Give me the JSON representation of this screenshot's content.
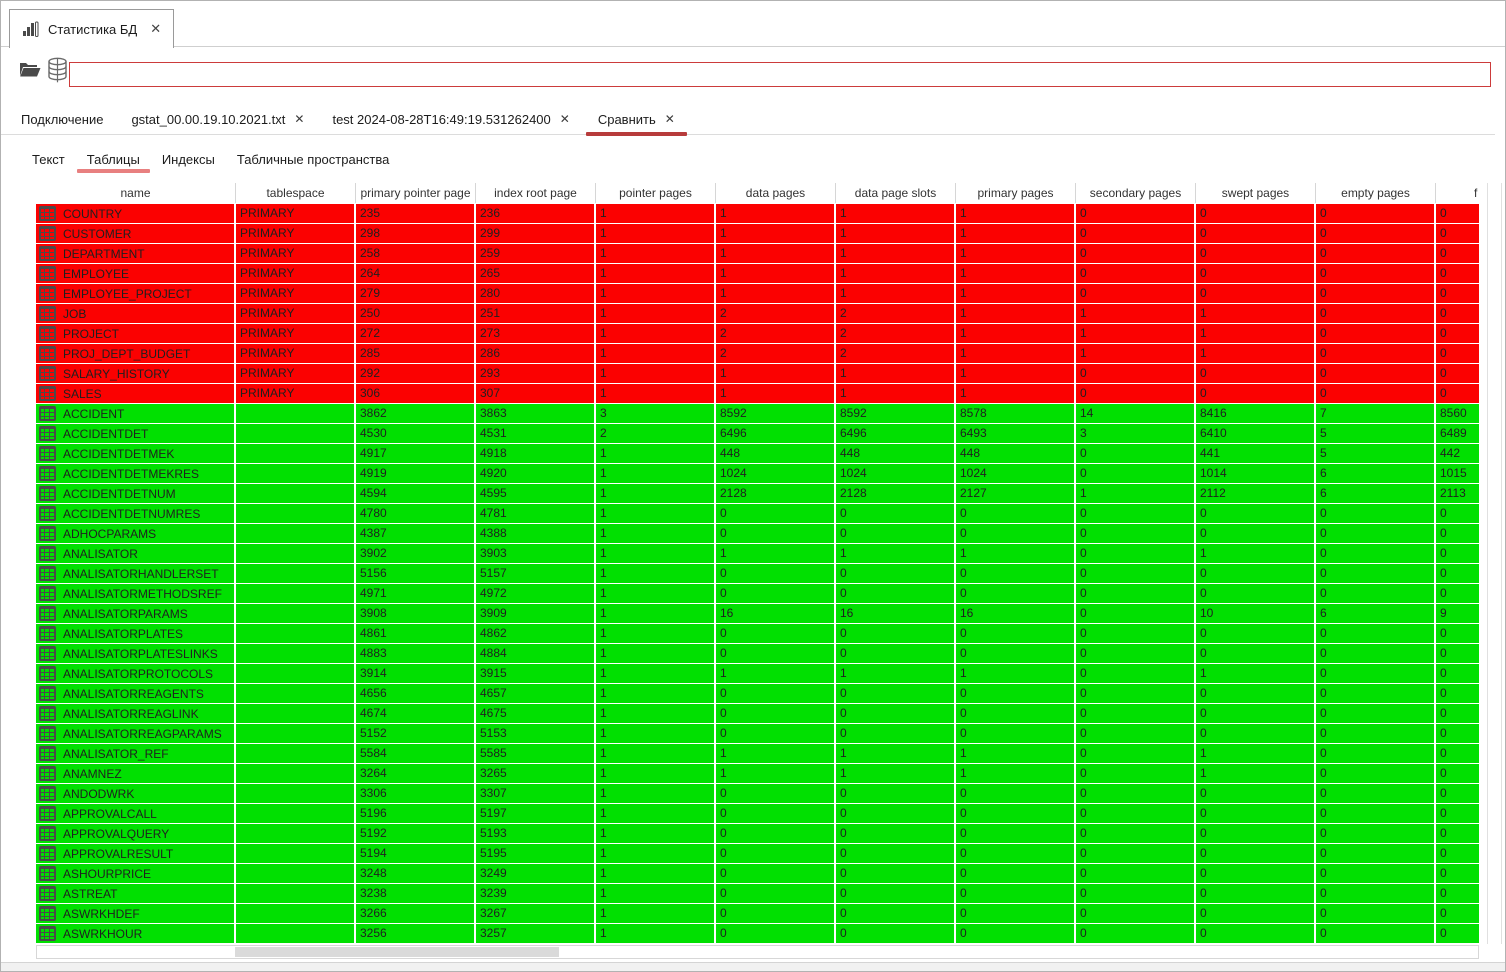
{
  "window_tab": {
    "title": "Статистика БД",
    "close_glyph": "✕"
  },
  "toolbar": {
    "path_value": ""
  },
  "doc_tabs": {
    "close_glyph": "✕",
    "items": [
      {
        "label": "Подключение",
        "closable": false,
        "active": false
      },
      {
        "label": "gstat_00.00.19.10.2021.txt",
        "closable": true,
        "active": false
      },
      {
        "label": "test 2024-08-28T16:49:19.531262400",
        "closable": true,
        "active": false
      },
      {
        "label": "Сравнить",
        "closable": true,
        "active": true
      }
    ]
  },
  "view_tabs": {
    "items": [
      {
        "label": "Текст",
        "active": false
      },
      {
        "label": "Таблицы",
        "active": true
      },
      {
        "label": "Индексы",
        "active": false
      },
      {
        "label": "Табличные пространства",
        "active": false
      }
    ]
  },
  "colors": {
    "red_row": "#fb0101",
    "green_row": "#01e001",
    "active_tab_underline": "#b73b3b",
    "active_subtab_underline": "#e88080",
    "path_input_border": "#cc3b3b"
  },
  "table": {
    "columns": [
      "name",
      "tablespace",
      "primary pointer page",
      "index root page",
      "pointer pages",
      "data pages",
      "data page slots",
      "primary pages",
      "secondary pages",
      "swept pages",
      "empty pages",
      "f"
    ],
    "rows": [
      {
        "name": "COUNTRY",
        "tablespace": "PRIMARY",
        "status": "red",
        "values": [
          235,
          236,
          1,
          1,
          1,
          1,
          0,
          0,
          0,
          0
        ]
      },
      {
        "name": "CUSTOMER",
        "tablespace": "PRIMARY",
        "status": "red",
        "values": [
          298,
          299,
          1,
          1,
          1,
          1,
          0,
          0,
          0,
          0
        ]
      },
      {
        "name": "DEPARTMENT",
        "tablespace": "PRIMARY",
        "status": "red",
        "values": [
          258,
          259,
          1,
          1,
          1,
          1,
          0,
          0,
          0,
          0
        ]
      },
      {
        "name": "EMPLOYEE",
        "tablespace": "PRIMARY",
        "status": "red",
        "values": [
          264,
          265,
          1,
          1,
          1,
          1,
          0,
          0,
          0,
          0
        ]
      },
      {
        "name": "EMPLOYEE_PROJECT",
        "tablespace": "PRIMARY",
        "status": "red",
        "values": [
          279,
          280,
          1,
          1,
          1,
          1,
          0,
          0,
          0,
          0
        ]
      },
      {
        "name": "JOB",
        "tablespace": "PRIMARY",
        "status": "red",
        "values": [
          250,
          251,
          1,
          2,
          2,
          1,
          1,
          1,
          0,
          0
        ]
      },
      {
        "name": "PROJECT",
        "tablespace": "PRIMARY",
        "status": "red",
        "values": [
          272,
          273,
          1,
          2,
          2,
          1,
          1,
          1,
          0,
          0
        ]
      },
      {
        "name": "PROJ_DEPT_BUDGET",
        "tablespace": "PRIMARY",
        "status": "red",
        "values": [
          285,
          286,
          1,
          2,
          2,
          1,
          1,
          1,
          0,
          0
        ]
      },
      {
        "name": "SALARY_HISTORY",
        "tablespace": "PRIMARY",
        "status": "red",
        "values": [
          292,
          293,
          1,
          1,
          1,
          1,
          0,
          0,
          0,
          0
        ]
      },
      {
        "name": "SALES",
        "tablespace": "PRIMARY",
        "status": "red",
        "values": [
          306,
          307,
          1,
          1,
          1,
          1,
          0,
          0,
          0,
          0
        ]
      },
      {
        "name": "ACCIDENT",
        "tablespace": "",
        "status": "green",
        "values": [
          3862,
          3863,
          3,
          8592,
          8592,
          8578,
          14,
          8416,
          7,
          8560
        ]
      },
      {
        "name": "ACCIDENTDET",
        "tablespace": "",
        "status": "green",
        "values": [
          4530,
          4531,
          2,
          6496,
          6496,
          6493,
          3,
          6410,
          5,
          6489
        ]
      },
      {
        "name": "ACCIDENTDETMEK",
        "tablespace": "",
        "status": "green",
        "values": [
          4917,
          4918,
          1,
          448,
          448,
          448,
          0,
          441,
          5,
          442
        ]
      },
      {
        "name": "ACCIDENTDETMEKRES",
        "tablespace": "",
        "status": "green",
        "values": [
          4919,
          4920,
          1,
          1024,
          1024,
          1024,
          0,
          1014,
          6,
          1015
        ]
      },
      {
        "name": "ACCIDENTDETNUM",
        "tablespace": "",
        "status": "green",
        "values": [
          4594,
          4595,
          1,
          2128,
          2128,
          2127,
          1,
          2112,
          6,
          2113
        ]
      },
      {
        "name": "ACCIDENTDETNUMRES",
        "tablespace": "",
        "status": "green",
        "values": [
          4780,
          4781,
          1,
          0,
          0,
          0,
          0,
          0,
          0,
          0
        ]
      },
      {
        "name": "ADHOCPARAMS",
        "tablespace": "",
        "status": "green",
        "values": [
          4387,
          4388,
          1,
          0,
          0,
          0,
          0,
          0,
          0,
          0
        ]
      },
      {
        "name": "ANALISATOR",
        "tablespace": "",
        "status": "green",
        "values": [
          3902,
          3903,
          1,
          1,
          1,
          1,
          0,
          1,
          0,
          0
        ]
      },
      {
        "name": "ANALISATORHANDLERSET",
        "tablespace": "",
        "status": "green",
        "values": [
          5156,
          5157,
          1,
          0,
          0,
          0,
          0,
          0,
          0,
          0
        ]
      },
      {
        "name": "ANALISATORMETHODSREF",
        "tablespace": "",
        "status": "green",
        "values": [
          4971,
          4972,
          1,
          0,
          0,
          0,
          0,
          0,
          0,
          0
        ]
      },
      {
        "name": "ANALISATORPARAMS",
        "tablespace": "",
        "status": "green",
        "values": [
          3908,
          3909,
          1,
          16,
          16,
          16,
          0,
          10,
          6,
          9
        ]
      },
      {
        "name": "ANALISATORPLATES",
        "tablespace": "",
        "status": "green",
        "values": [
          4861,
          4862,
          1,
          0,
          0,
          0,
          0,
          0,
          0,
          0
        ]
      },
      {
        "name": "ANALISATORPLATESLINKS",
        "tablespace": "",
        "status": "green",
        "values": [
          4883,
          4884,
          1,
          0,
          0,
          0,
          0,
          0,
          0,
          0
        ]
      },
      {
        "name": "ANALISATORPROTOCOLS",
        "tablespace": "",
        "status": "green",
        "values": [
          3914,
          3915,
          1,
          1,
          1,
          1,
          0,
          1,
          0,
          0
        ]
      },
      {
        "name": "ANALISATORREAGENTS",
        "tablespace": "",
        "status": "green",
        "values": [
          4656,
          4657,
          1,
          0,
          0,
          0,
          0,
          0,
          0,
          0
        ]
      },
      {
        "name": "ANALISATORREAGLINK",
        "tablespace": "",
        "status": "green",
        "values": [
          4674,
          4675,
          1,
          0,
          0,
          0,
          0,
          0,
          0,
          0
        ]
      },
      {
        "name": "ANALISATORREAGPARAMS",
        "tablespace": "",
        "status": "green",
        "values": [
          5152,
          5153,
          1,
          0,
          0,
          0,
          0,
          0,
          0,
          0
        ]
      },
      {
        "name": "ANALISATOR_REF",
        "tablespace": "",
        "status": "green",
        "values": [
          5584,
          5585,
          1,
          1,
          1,
          1,
          0,
          1,
          0,
          0
        ]
      },
      {
        "name": "ANAMNEZ",
        "tablespace": "",
        "status": "green",
        "values": [
          3264,
          3265,
          1,
          1,
          1,
          1,
          0,
          1,
          0,
          0
        ]
      },
      {
        "name": "ANDODWRK",
        "tablespace": "",
        "status": "green",
        "values": [
          3306,
          3307,
          1,
          0,
          0,
          0,
          0,
          0,
          0,
          0
        ]
      },
      {
        "name": "APPROVALCALL",
        "tablespace": "",
        "status": "green",
        "values": [
          5196,
          5197,
          1,
          0,
          0,
          0,
          0,
          0,
          0,
          0
        ]
      },
      {
        "name": "APPROVALQUERY",
        "tablespace": "",
        "status": "green",
        "values": [
          5192,
          5193,
          1,
          0,
          0,
          0,
          0,
          0,
          0,
          0
        ]
      },
      {
        "name": "APPROVALRESULT",
        "tablespace": "",
        "status": "green",
        "values": [
          5194,
          5195,
          1,
          0,
          0,
          0,
          0,
          0,
          0,
          0
        ]
      },
      {
        "name": "ASHOURPRICE",
        "tablespace": "",
        "status": "green",
        "values": [
          3248,
          3249,
          1,
          0,
          0,
          0,
          0,
          0,
          0,
          0
        ]
      },
      {
        "name": "ASTREAT",
        "tablespace": "",
        "status": "green",
        "values": [
          3238,
          3239,
          1,
          0,
          0,
          0,
          0,
          0,
          0,
          0
        ]
      },
      {
        "name": "ASWRKHDEF",
        "tablespace": "",
        "status": "green",
        "values": [
          3266,
          3267,
          1,
          0,
          0,
          0,
          0,
          0,
          0,
          0
        ]
      },
      {
        "name": "ASWRKHOUR",
        "tablespace": "",
        "status": "green",
        "values": [
          3256,
          3257,
          1,
          0,
          0,
          0,
          0,
          0,
          0,
          0
        ]
      }
    ]
  }
}
